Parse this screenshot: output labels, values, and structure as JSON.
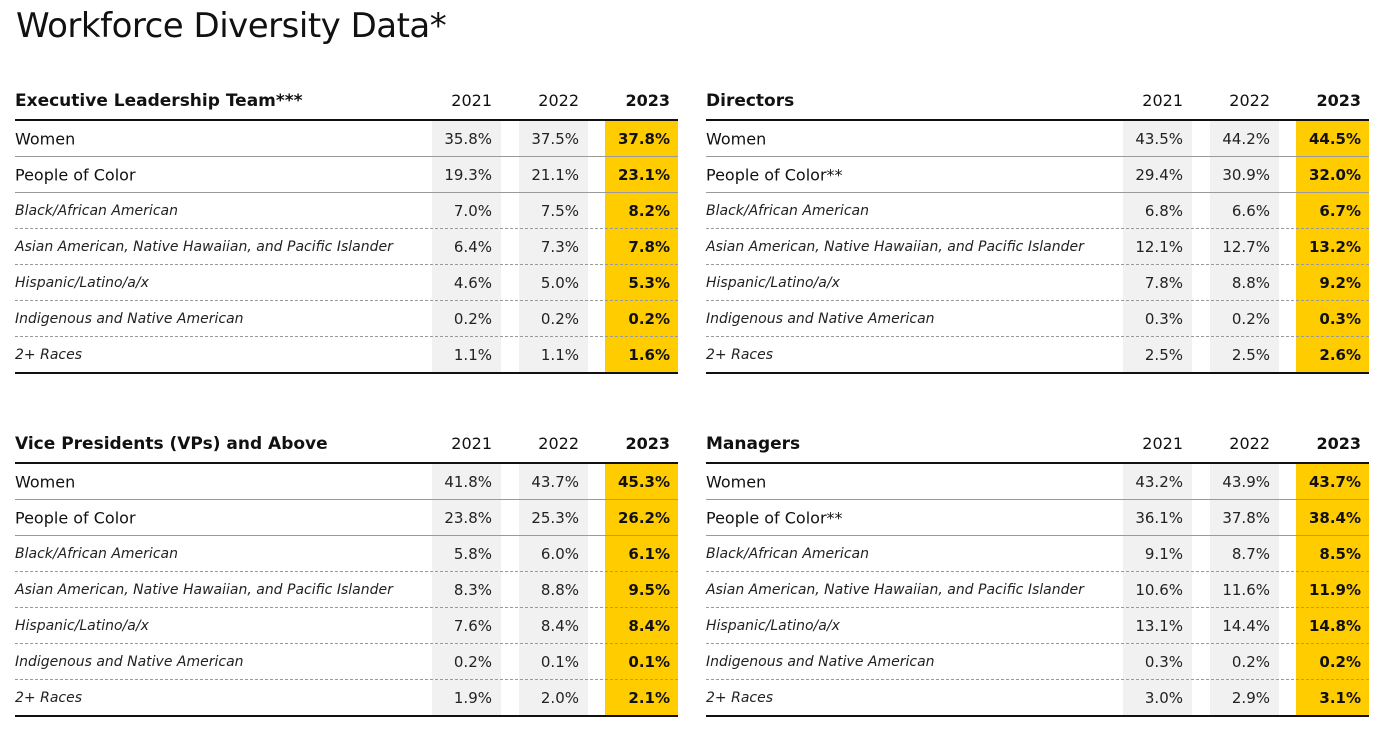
{
  "page": {
    "title": "Workforce Diversity Data*"
  },
  "years": [
    "2021",
    "2022",
    "2023"
  ],
  "panels": [
    {
      "title": "Executive Leadership Team***",
      "rows": [
        {
          "label": "Women",
          "values": [
            "35.8%",
            "37.5%",
            "37.8%"
          ]
        },
        {
          "label": "People of Color",
          "values": [
            "19.3%",
            "21.1%",
            "23.1%"
          ]
        },
        {
          "label": "Black/African American",
          "values": [
            "7.0%",
            "7.5%",
            "8.2%"
          ]
        },
        {
          "label": "Asian American, Native Hawaiian, and Pacific Islander",
          "values": [
            "6.4%",
            "7.3%",
            "7.8%"
          ]
        },
        {
          "label": "Hispanic/Latino/a/x",
          "values": [
            "4.6%",
            "5.0%",
            "5.3%"
          ]
        },
        {
          "label": "Indigenous and Native American",
          "values": [
            "0.2%",
            "0.2%",
            "0.2%"
          ]
        },
        {
          "label": "2+ Races",
          "values": [
            "1.1%",
            "1.1%",
            "1.6%"
          ]
        }
      ]
    },
    {
      "title": "Directors",
      "rows": [
        {
          "label": "Women",
          "values": [
            "43.5%",
            "44.2%",
            "44.5%"
          ]
        },
        {
          "label": "People of Color**",
          "values": [
            "29.4%",
            "30.9%",
            "32.0%"
          ]
        },
        {
          "label": "Black/African American",
          "values": [
            "6.8%",
            "6.6%",
            "6.7%"
          ]
        },
        {
          "label": "Asian American, Native Hawaiian, and Pacific Islander",
          "values": [
            "12.1%",
            "12.7%",
            "13.2%"
          ]
        },
        {
          "label": "Hispanic/Latino/a/x",
          "values": [
            "7.8%",
            "8.8%",
            "9.2%"
          ]
        },
        {
          "label": "Indigenous and Native American",
          "values": [
            "0.3%",
            "0.2%",
            "0.3%"
          ]
        },
        {
          "label": "2+ Races",
          "values": [
            "2.5%",
            "2.5%",
            "2.6%"
          ]
        }
      ]
    },
    {
      "title": "Vice Presidents (VPs) and Above",
      "rows": [
        {
          "label": "Women",
          "values": [
            "41.8%",
            "43.7%",
            "45.3%"
          ]
        },
        {
          "label": "People of Color",
          "values": [
            "23.8%",
            "25.3%",
            "26.2%"
          ]
        },
        {
          "label": "Black/African American",
          "values": [
            "5.8%",
            "6.0%",
            "6.1%"
          ]
        },
        {
          "label": "Asian American, Native Hawaiian, and Pacific Islander",
          "values": [
            "8.3%",
            "8.8%",
            "9.5%"
          ]
        },
        {
          "label": "Hispanic/Latino/a/x",
          "values": [
            "7.6%",
            "8.4%",
            "8.4%"
          ]
        },
        {
          "label": "Indigenous and Native American",
          "values": [
            "0.2%",
            "0.1%",
            "0.1%"
          ]
        },
        {
          "label": "2+ Races",
          "values": [
            "1.9%",
            "2.0%",
            "2.1%"
          ]
        }
      ]
    },
    {
      "title": "Managers",
      "rows": [
        {
          "label": "Women",
          "values": [
            "43.2%",
            "43.9%",
            "43.7%"
          ]
        },
        {
          "label": "People of Color**",
          "values": [
            "36.1%",
            "37.8%",
            "38.4%"
          ]
        },
        {
          "label": "Black/African American",
          "values": [
            "9.1%",
            "8.7%",
            "8.5%"
          ]
        },
        {
          "label": "Asian American, Native Hawaiian, and Pacific Islander",
          "values": [
            "10.6%",
            "11.6%",
            "11.9%"
          ]
        },
        {
          "label": "Hispanic/Latino/a/x",
          "values": [
            "13.1%",
            "14.4%",
            "14.8%"
          ]
        },
        {
          "label": "Indigenous and Native American",
          "values": [
            "0.3%",
            "0.2%",
            "0.2%"
          ]
        },
        {
          "label": "2+ Races",
          "values": [
            "3.0%",
            "2.9%",
            "3.1%"
          ]
        }
      ]
    }
  ],
  "colors": {
    "highlight": "#ffcc00",
    "shade": "#f1f1f1",
    "text": "#111111",
    "rule": "#111111",
    "divider": "#9a9a9a"
  }
}
